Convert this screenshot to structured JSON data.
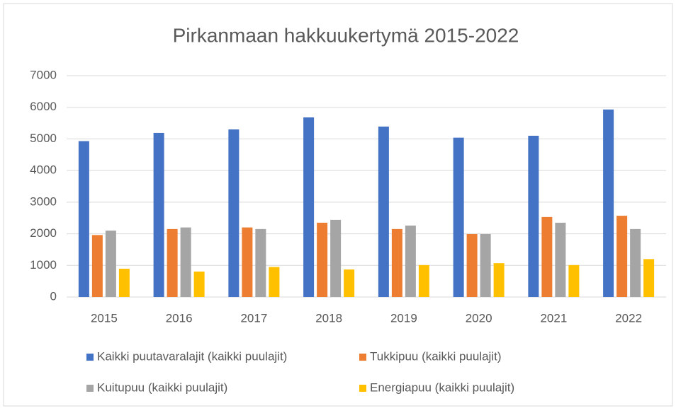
{
  "chart_data": {
    "type": "bar",
    "title": "Pirkanmaan hakkuukertymä 2015-2022",
    "categories": [
      "2015",
      "2016",
      "2017",
      "2018",
      "2019",
      "2020",
      "2021",
      "2022"
    ],
    "series": [
      {
        "name": "Kaikki puutavaralajit (kaikki puulajit)",
        "color": "#4472c4",
        "values": [
          4930,
          5190,
          5300,
          5680,
          5390,
          5040,
          5100,
          5930
        ]
      },
      {
        "name": "Tukkipuu (kaikki puulajit)",
        "color": "#ed7d31",
        "values": [
          1960,
          2150,
          2200,
          2350,
          2150,
          1990,
          2530,
          2570
        ]
      },
      {
        "name": "Kuitupuu (kaikki puulajit)",
        "color": "#a5a5a5",
        "values": [
          2100,
          2200,
          2150,
          2440,
          2260,
          1990,
          2350,
          2150
        ]
      },
      {
        "name": "Energiapuu (kaikki puulajit)",
        "color": "#ffc000",
        "values": [
          895,
          805,
          950,
          870,
          1010,
          1070,
          1010,
          1200
        ]
      }
    ],
    "ylim": [
      0,
      7000
    ],
    "yticks": [
      0,
      1000,
      2000,
      3000,
      4000,
      5000,
      6000,
      7000
    ],
    "grid": true,
    "legend": "bottom"
  }
}
